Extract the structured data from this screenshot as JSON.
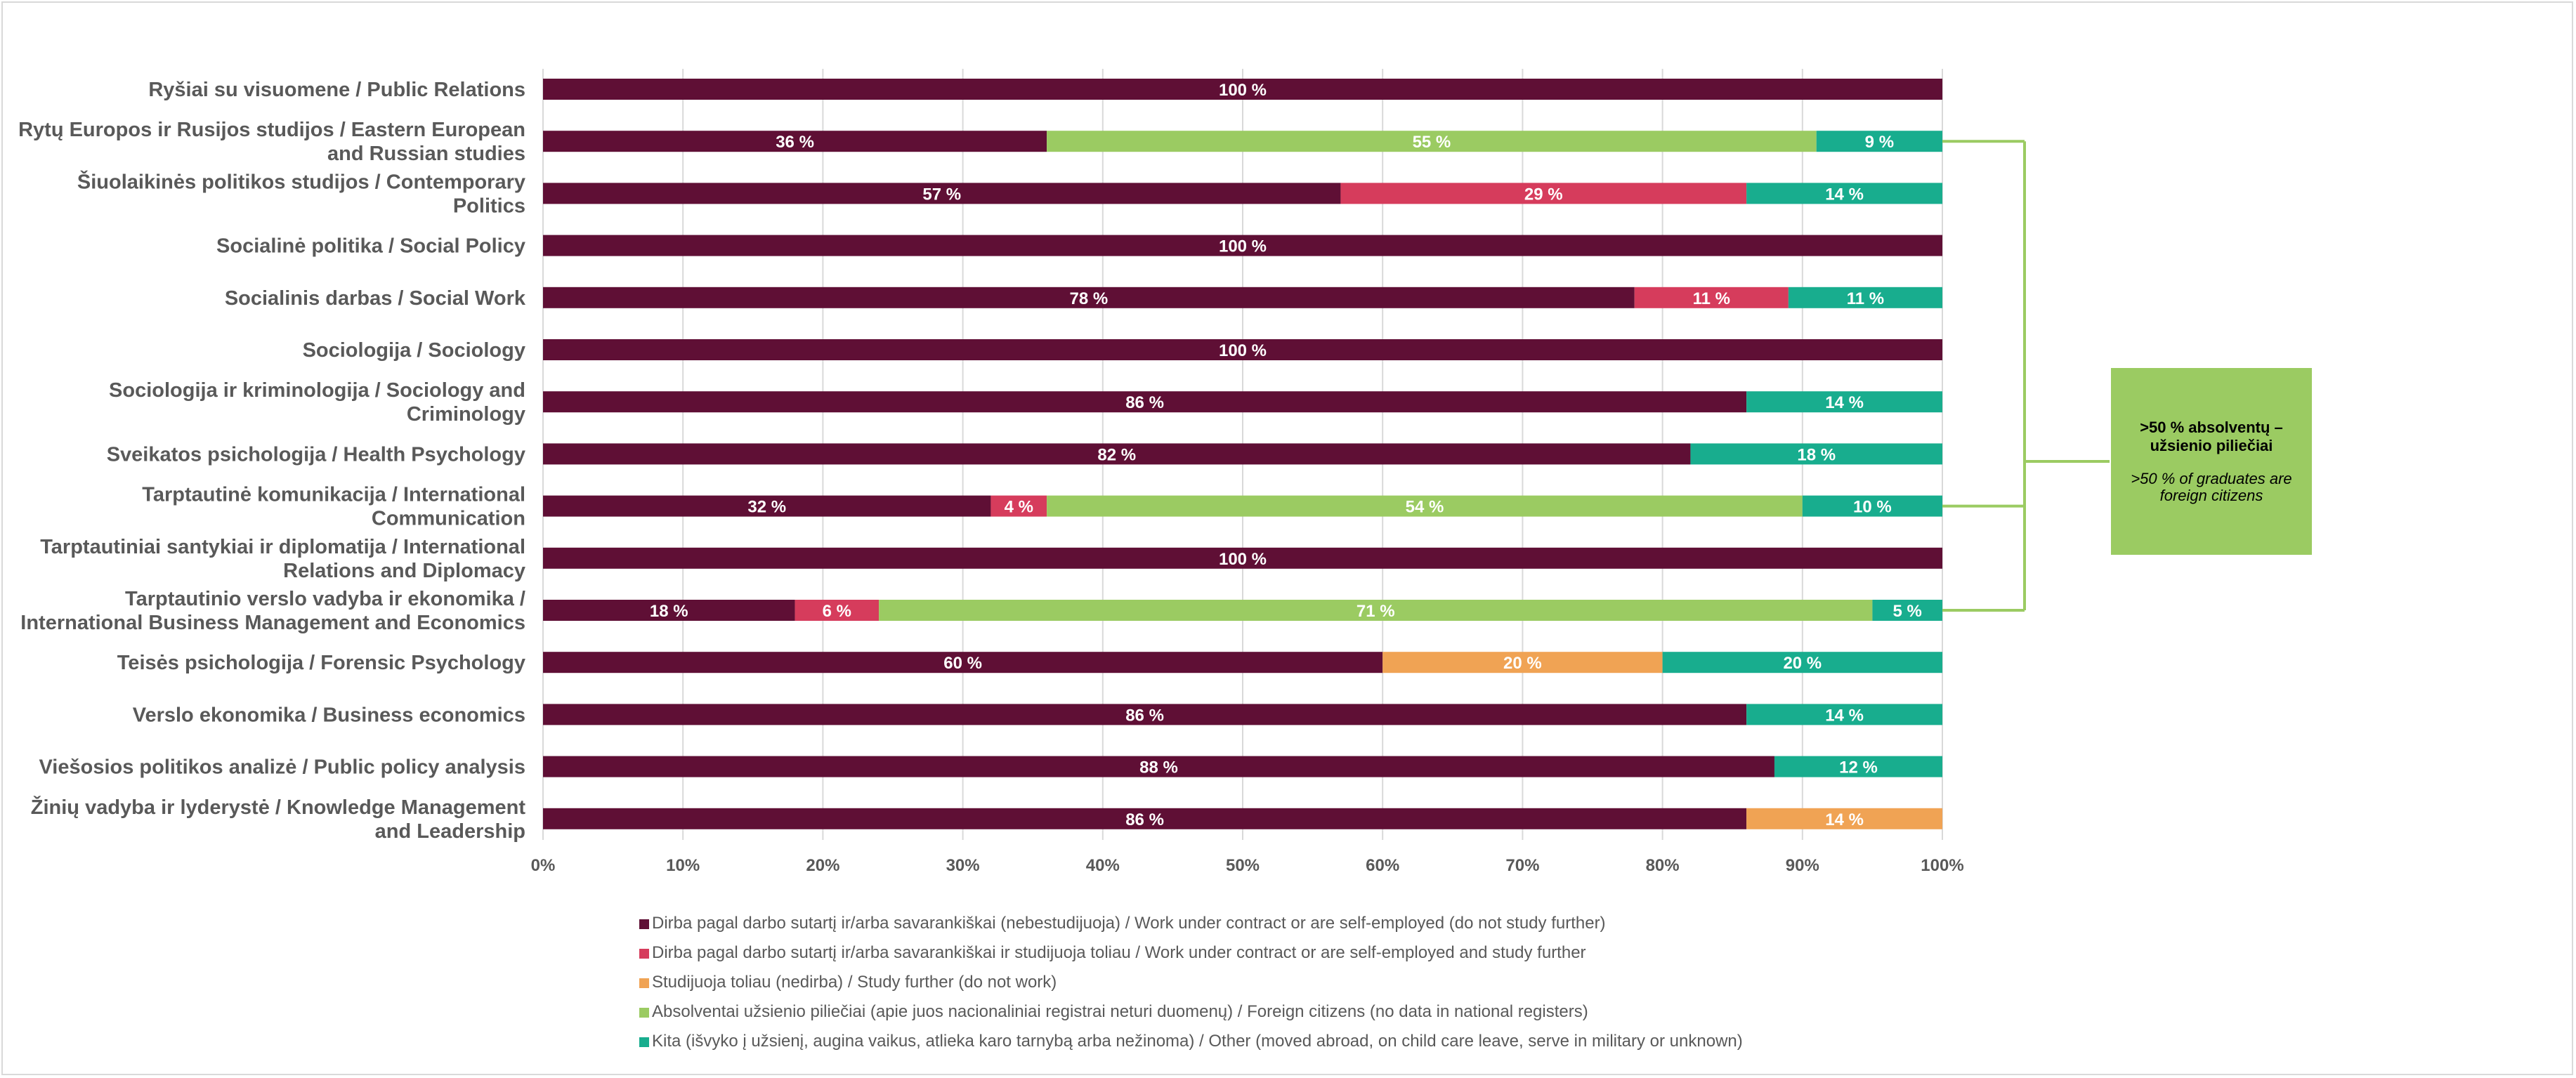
{
  "chart_data": {
    "type": "bar",
    "orientation": "horizontal",
    "stacked": true,
    "title": "",
    "xlabel": "",
    "ylabel": "",
    "xlim": [
      0,
      100
    ],
    "x_ticks": [
      "0%",
      "10%",
      "20%",
      "30%",
      "40%",
      "50%",
      "60%",
      "70%",
      "80%",
      "90%",
      "100%"
    ],
    "grid": true,
    "legend_position": "bottom",
    "categories": [
      "Ryšiai su visuomene / Public Relations",
      "Rytų Europos ir Rusijos studijos / Eastern European and Russian studies",
      "Šiuolaikinės politikos studijos / Contemporary Politics",
      "Socialinė politika / Social Policy",
      "Socialinis darbas / Social Work",
      "Sociologija / Sociology",
      "Sociologija ir kriminologija / Sociology and Criminology",
      "Sveikatos psichologija / Health Psychology",
      "Tarptautinė komunikacija / International Communication",
      "Tarptautiniai santykiai ir diplomatija / International Relations and Diplomacy",
      "Tarptautinio verslo vadyba ir ekonomika / International Business Management and Economics",
      "Teisės psichologija / Forensic Psychology",
      "Verslo ekonomika / Business economics",
      "Viešosios politikos analizė / Public policy analysis",
      "Žinių vadyba ir lyderystė / Knowledge Management and Leadership"
    ],
    "category_lines": [
      [
        "Ryšiai su visuomene / Public Relations"
      ],
      [
        "Rytų Europos ir Rusijos studijos / Eastern European",
        "and Russian studies"
      ],
      [
        "Šiuolaikinės politikos studijos / Contemporary",
        "Politics"
      ],
      [
        "Socialinė politika / Social Policy"
      ],
      [
        "Socialinis darbas / Social Work"
      ],
      [
        "Sociologija / Sociology"
      ],
      [
        "Sociologija ir kriminologija / Sociology and",
        "Criminology"
      ],
      [
        "Sveikatos psichologija / Health Psychology"
      ],
      [
        "Tarptautinė komunikacija / International",
        "Communication"
      ],
      [
        "Tarptautiniai santykiai ir diplomatija / International",
        "Relations and Diplomacy"
      ],
      [
        "Tarptautinio verslo vadyba ir ekonomika /",
        "International Business Management and Economics"
      ],
      [
        "Teisės psichologija / Forensic Psychology"
      ],
      [
        "Verslo ekonomika / Business economics"
      ],
      [
        "Viešosios politikos analizė / Public policy analysis"
      ],
      [
        "Žinių vadyba ir lyderystė / Knowledge Management",
        "and Leadership"
      ]
    ],
    "series": [
      {
        "name": "Dirba pagal darbo sutartį ir/arba savarankiškai (nebestudijuoja) / Work under contract or are self-employed (do not study further)",
        "color": "#5f0f35",
        "values": [
          100,
          36,
          57,
          100,
          78,
          100,
          86,
          82,
          32,
          100,
          18,
          60,
          86,
          88,
          86
        ]
      },
      {
        "name": "Dirba pagal darbo sutartį ir/arba savarankiškai  ir studijuoja toliau / Work under contract or are self-employed and study further",
        "color": "#d63c5c",
        "values": [
          0,
          0,
          29,
          0,
          11,
          0,
          0,
          0,
          4,
          0,
          6,
          0,
          0,
          0,
          0
        ]
      },
      {
        "name": "Studijuoja toliau (nedirba) / Study further (do not work)",
        "color": "#f0a354",
        "values": [
          0,
          0,
          0,
          0,
          0,
          0,
          0,
          0,
          0,
          0,
          0,
          20,
          0,
          0,
          14
        ]
      },
      {
        "name": "Absolventai užsienio piliečiai (apie juos nacionaliniai registrai neturi duomenų) / Foreign citizens (no data in national registers)",
        "color": "#9bcb62",
        "values": [
          0,
          55,
          0,
          0,
          0,
          0,
          0,
          0,
          54,
          0,
          71,
          0,
          0,
          0,
          0
        ]
      },
      {
        "name": "Kita (išvyko į užsienį, augina vaikus, atlieka karo tarnybą arba nežinoma) / Other (moved abroad, on child care leave, serve in military or unknown)",
        "color": "#18ad8e",
        "values": [
          0,
          9,
          14,
          0,
          11,
          0,
          14,
          18,
          10,
          0,
          5,
          20,
          14,
          12,
          0
        ]
      }
    ],
    "value_suffix": " %",
    "annotation": {
      "title": ">50 % absolventų – užsienio piliečiai",
      "subtitle": ">50 % of graduates are foreign citizens",
      "color": "#9bcb62",
      "bracket_categories": [
        1,
        8,
        10
      ]
    }
  }
}
